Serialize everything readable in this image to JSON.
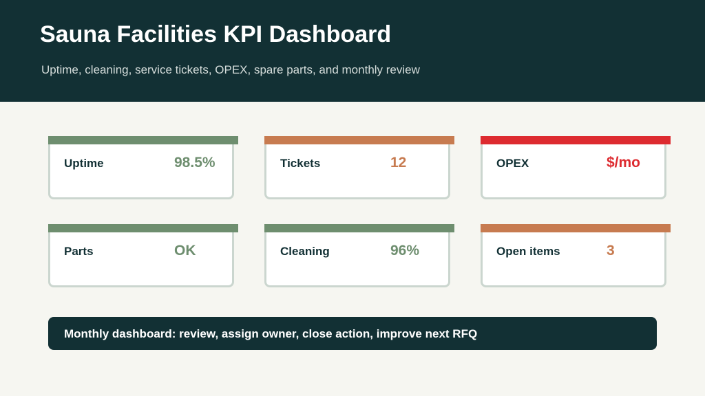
{
  "header": {
    "title": "Sauna Facilities KPI Dashboard",
    "subtitle": "Uptime, cleaning, service tickets, OPEX, spare parts, and monthly review"
  },
  "colors": {
    "header_bg": "#123034",
    "green": "#6e8e6f",
    "orange": "#c77b50",
    "red": "#dd2b30",
    "page_bg": "#f6f6f1"
  },
  "kpis": [
    {
      "label": "Uptime",
      "value": "98.5%",
      "status": "green"
    },
    {
      "label": "Tickets",
      "value": "12",
      "status": "orange"
    },
    {
      "label": "OPEX",
      "value": "$/mo",
      "status": "red"
    },
    {
      "label": "Parts",
      "value": "OK",
      "status": "green"
    },
    {
      "label": "Cleaning",
      "value": "96%",
      "status": "green"
    },
    {
      "label": "Open items",
      "value": "3",
      "status": "orange"
    }
  ],
  "footer": {
    "text": "Monthly dashboard: review, assign owner, close action, improve next RFQ"
  }
}
